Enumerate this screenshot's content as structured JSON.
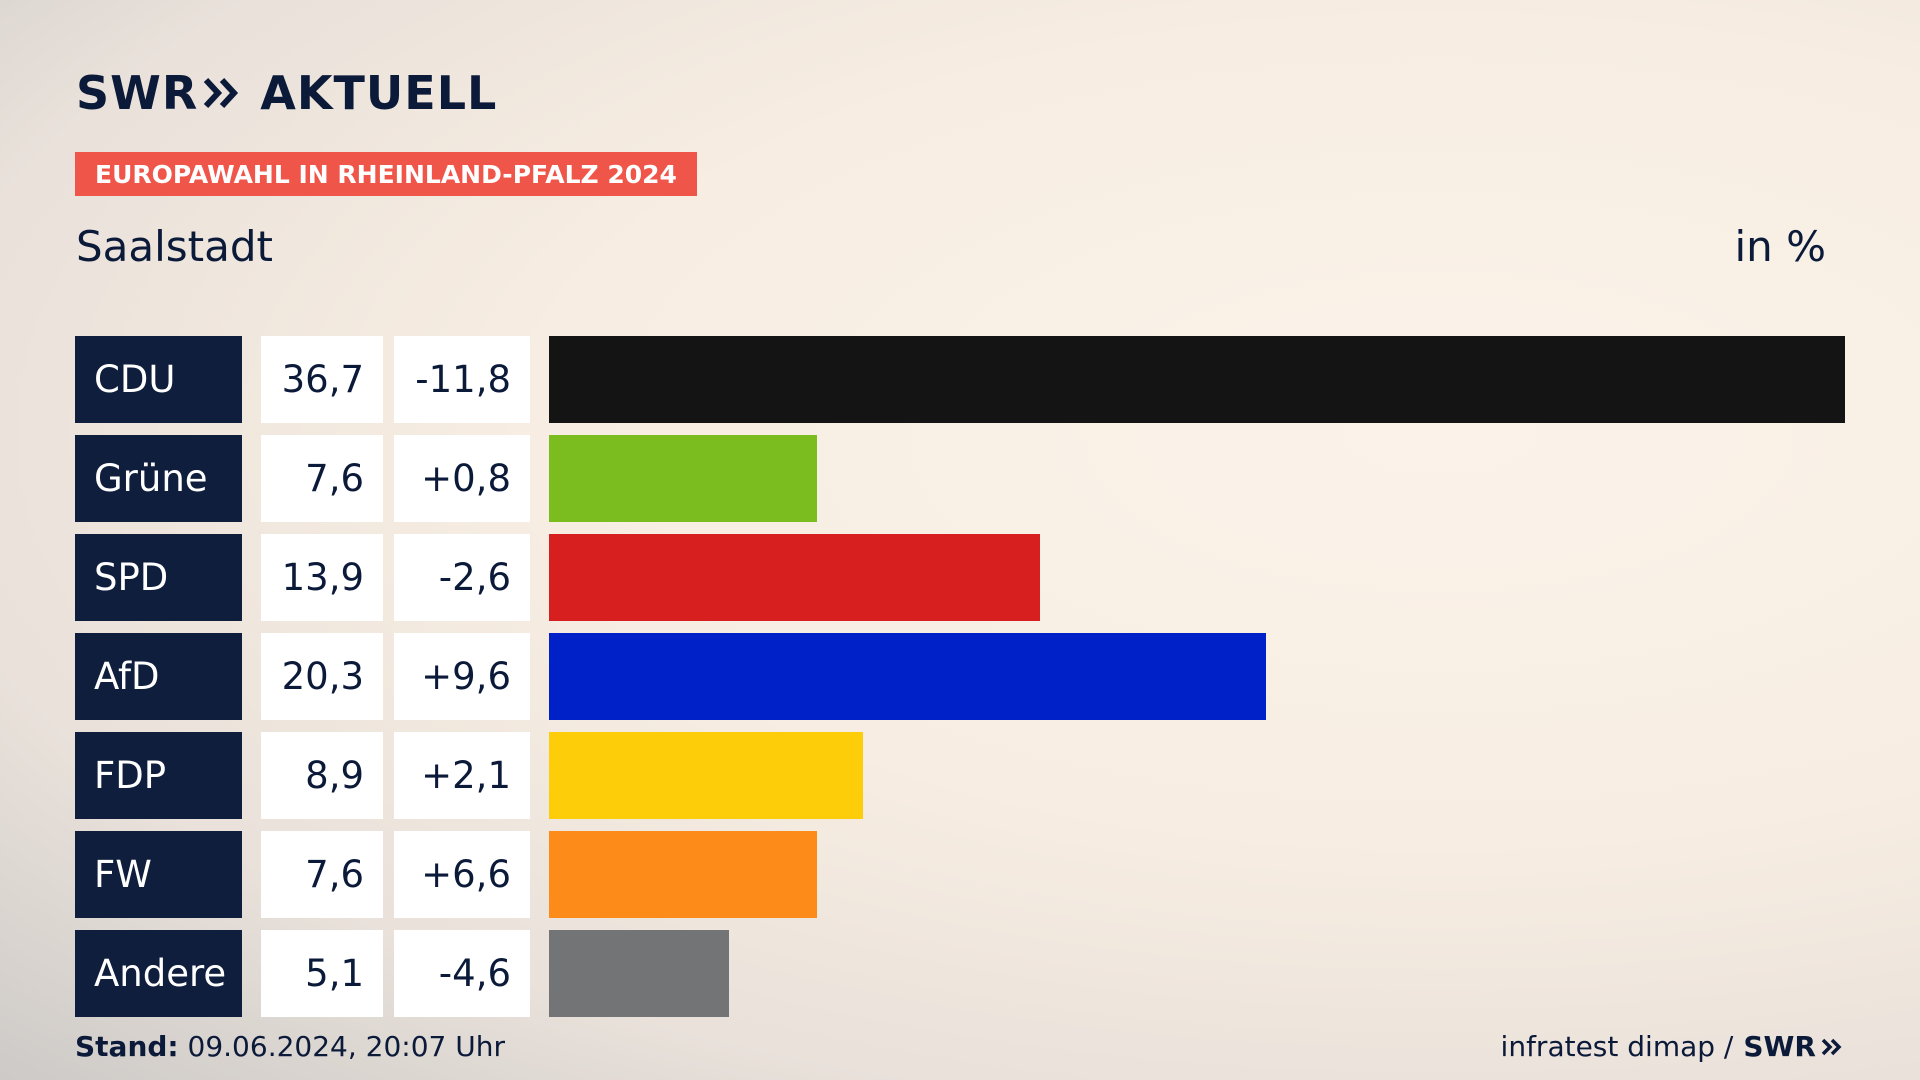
{
  "brand": {
    "name": "SWR",
    "section": "AKTUELL"
  },
  "badge": "EUROPAWAHL IN RHEINLAND-PFALZ 2024",
  "region": "Saalstadt",
  "unit": "in %",
  "colors": {
    "badge": "#f0554a",
    "party_box": "#0f1e3d",
    "text": "#0c1a3a"
  },
  "chart_data": {
    "type": "bar",
    "orientation": "horizontal",
    "categories": [
      "CDU",
      "Grüne",
      "SPD",
      "AfD",
      "FDP",
      "FW",
      "Andere"
    ],
    "values": [
      36.7,
      7.6,
      13.9,
      20.3,
      8.9,
      7.6,
      5.1
    ],
    "value_labels": [
      "36,7",
      "7,6",
      "13,9",
      "20,3",
      "8,9",
      "7,6",
      "5,1"
    ],
    "diff_labels": [
      "-11,8",
      "+0,8",
      "-2,6",
      "+9,6",
      "+2,1",
      "+6,6",
      "-4,6"
    ],
    "bar_colors": [
      "#141414",
      "#7bbd1e",
      "#d81f1f",
      "#0020c8",
      "#fecd0a",
      "#fd8b19",
      "#737476"
    ],
    "xlim": [
      0,
      36.7
    ],
    "grid": false,
    "legend": "none"
  },
  "footer": {
    "stand_label": "Stand:",
    "stand_value": "09.06.2024, 20:07 Uhr",
    "source": "infratest dimap /",
    "source_brand": "SWR"
  }
}
